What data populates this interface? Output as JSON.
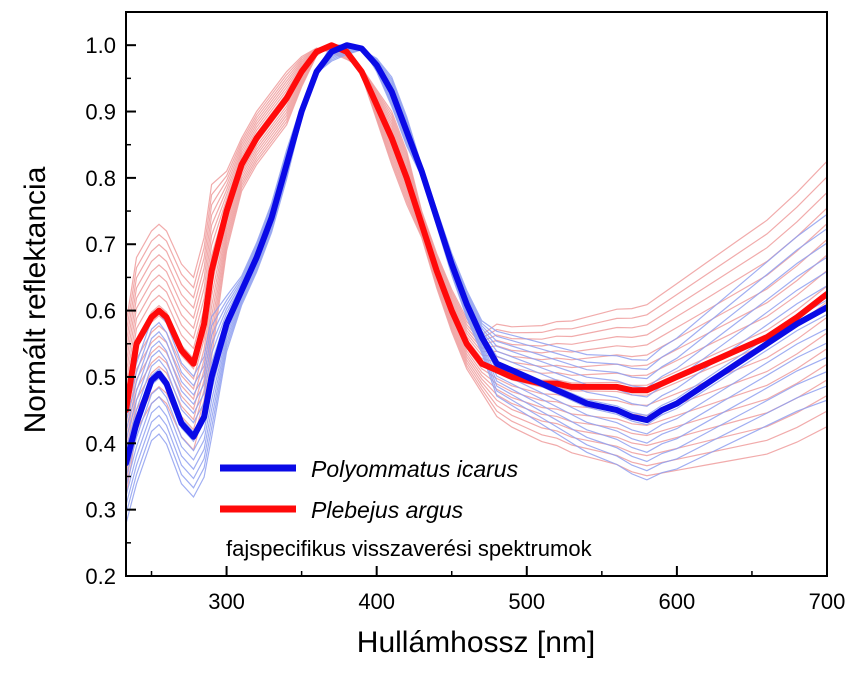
{
  "chart_data": {
    "type": "line",
    "xlabel": "Hullámhossz [nm]",
    "ylabel": "Normált reflektancia",
    "xlim": [
      233,
      700
    ],
    "ylim": [
      0.2,
      1.05
    ],
    "x_ticks": [
      300,
      400,
      500,
      600,
      700
    ],
    "y_ticks": [
      0.2,
      0.3,
      0.4,
      0.5,
      0.6,
      0.7,
      0.8,
      0.9,
      1.0
    ],
    "x_tick_labels": [
      "300",
      "400",
      "500",
      "600",
      "700"
    ],
    "y_tick_labels": [
      "0.2",
      "0.3",
      "0.4",
      "0.5",
      "0.6",
      "0.7",
      "0.8",
      "0.9",
      "1.0"
    ],
    "grid": false,
    "legend_position": "bottom-left",
    "annotation": "fajspecifikus visszaverési spektrumok",
    "colors": {
      "icarus_mean": "#0a0ae6",
      "argus_mean": "#ff0a0a",
      "icarus_individual": "#8fa0f0",
      "argus_individual": "#ef9c9c"
    },
    "x": [
      233,
      240,
      250,
      255,
      260,
      270,
      278,
      285,
      290,
      300,
      310,
      320,
      330,
      340,
      350,
      360,
      370,
      380,
      390,
      400,
      410,
      420,
      430,
      440,
      450,
      460,
      470,
      480,
      490,
      500,
      510,
      520,
      530,
      540,
      550,
      560,
      570,
      580,
      590,
      600,
      620,
      640,
      660,
      680,
      700
    ],
    "series": [
      {
        "name": "Polyommatus icarus",
        "role": "mean",
        "values": [
          0.37,
          0.43,
          0.495,
          0.505,
          0.49,
          0.43,
          0.41,
          0.44,
          0.5,
          0.58,
          0.63,
          0.68,
          0.74,
          0.82,
          0.9,
          0.96,
          0.99,
          1.0,
          0.995,
          0.97,
          0.93,
          0.87,
          0.81,
          0.74,
          0.67,
          0.61,
          0.56,
          0.52,
          0.51,
          0.5,
          0.49,
          0.48,
          0.47,
          0.46,
          0.455,
          0.45,
          0.44,
          0.435,
          0.45,
          0.46,
          0.49,
          0.52,
          0.55,
          0.58,
          0.605
        ]
      },
      {
        "name": "Plebejus argus",
        "role": "mean",
        "values": [
          0.45,
          0.55,
          0.59,
          0.6,
          0.59,
          0.54,
          0.52,
          0.58,
          0.66,
          0.75,
          0.82,
          0.86,
          0.89,
          0.92,
          0.96,
          0.99,
          1.0,
          0.99,
          0.96,
          0.91,
          0.86,
          0.8,
          0.73,
          0.66,
          0.6,
          0.55,
          0.52,
          0.51,
          0.5,
          0.495,
          0.49,
          0.49,
          0.485,
          0.485,
          0.485,
          0.485,
          0.48,
          0.48,
          0.49,
          0.5,
          0.52,
          0.54,
          0.56,
          0.59,
          0.625
        ]
      }
    ]
  },
  "legend": {
    "items": [
      {
        "label": "Polyommatus icarus",
        "color": "#0a0ae6"
      },
      {
        "label": "Plebejus argus",
        "color": "#ff0a0a"
      }
    ]
  }
}
